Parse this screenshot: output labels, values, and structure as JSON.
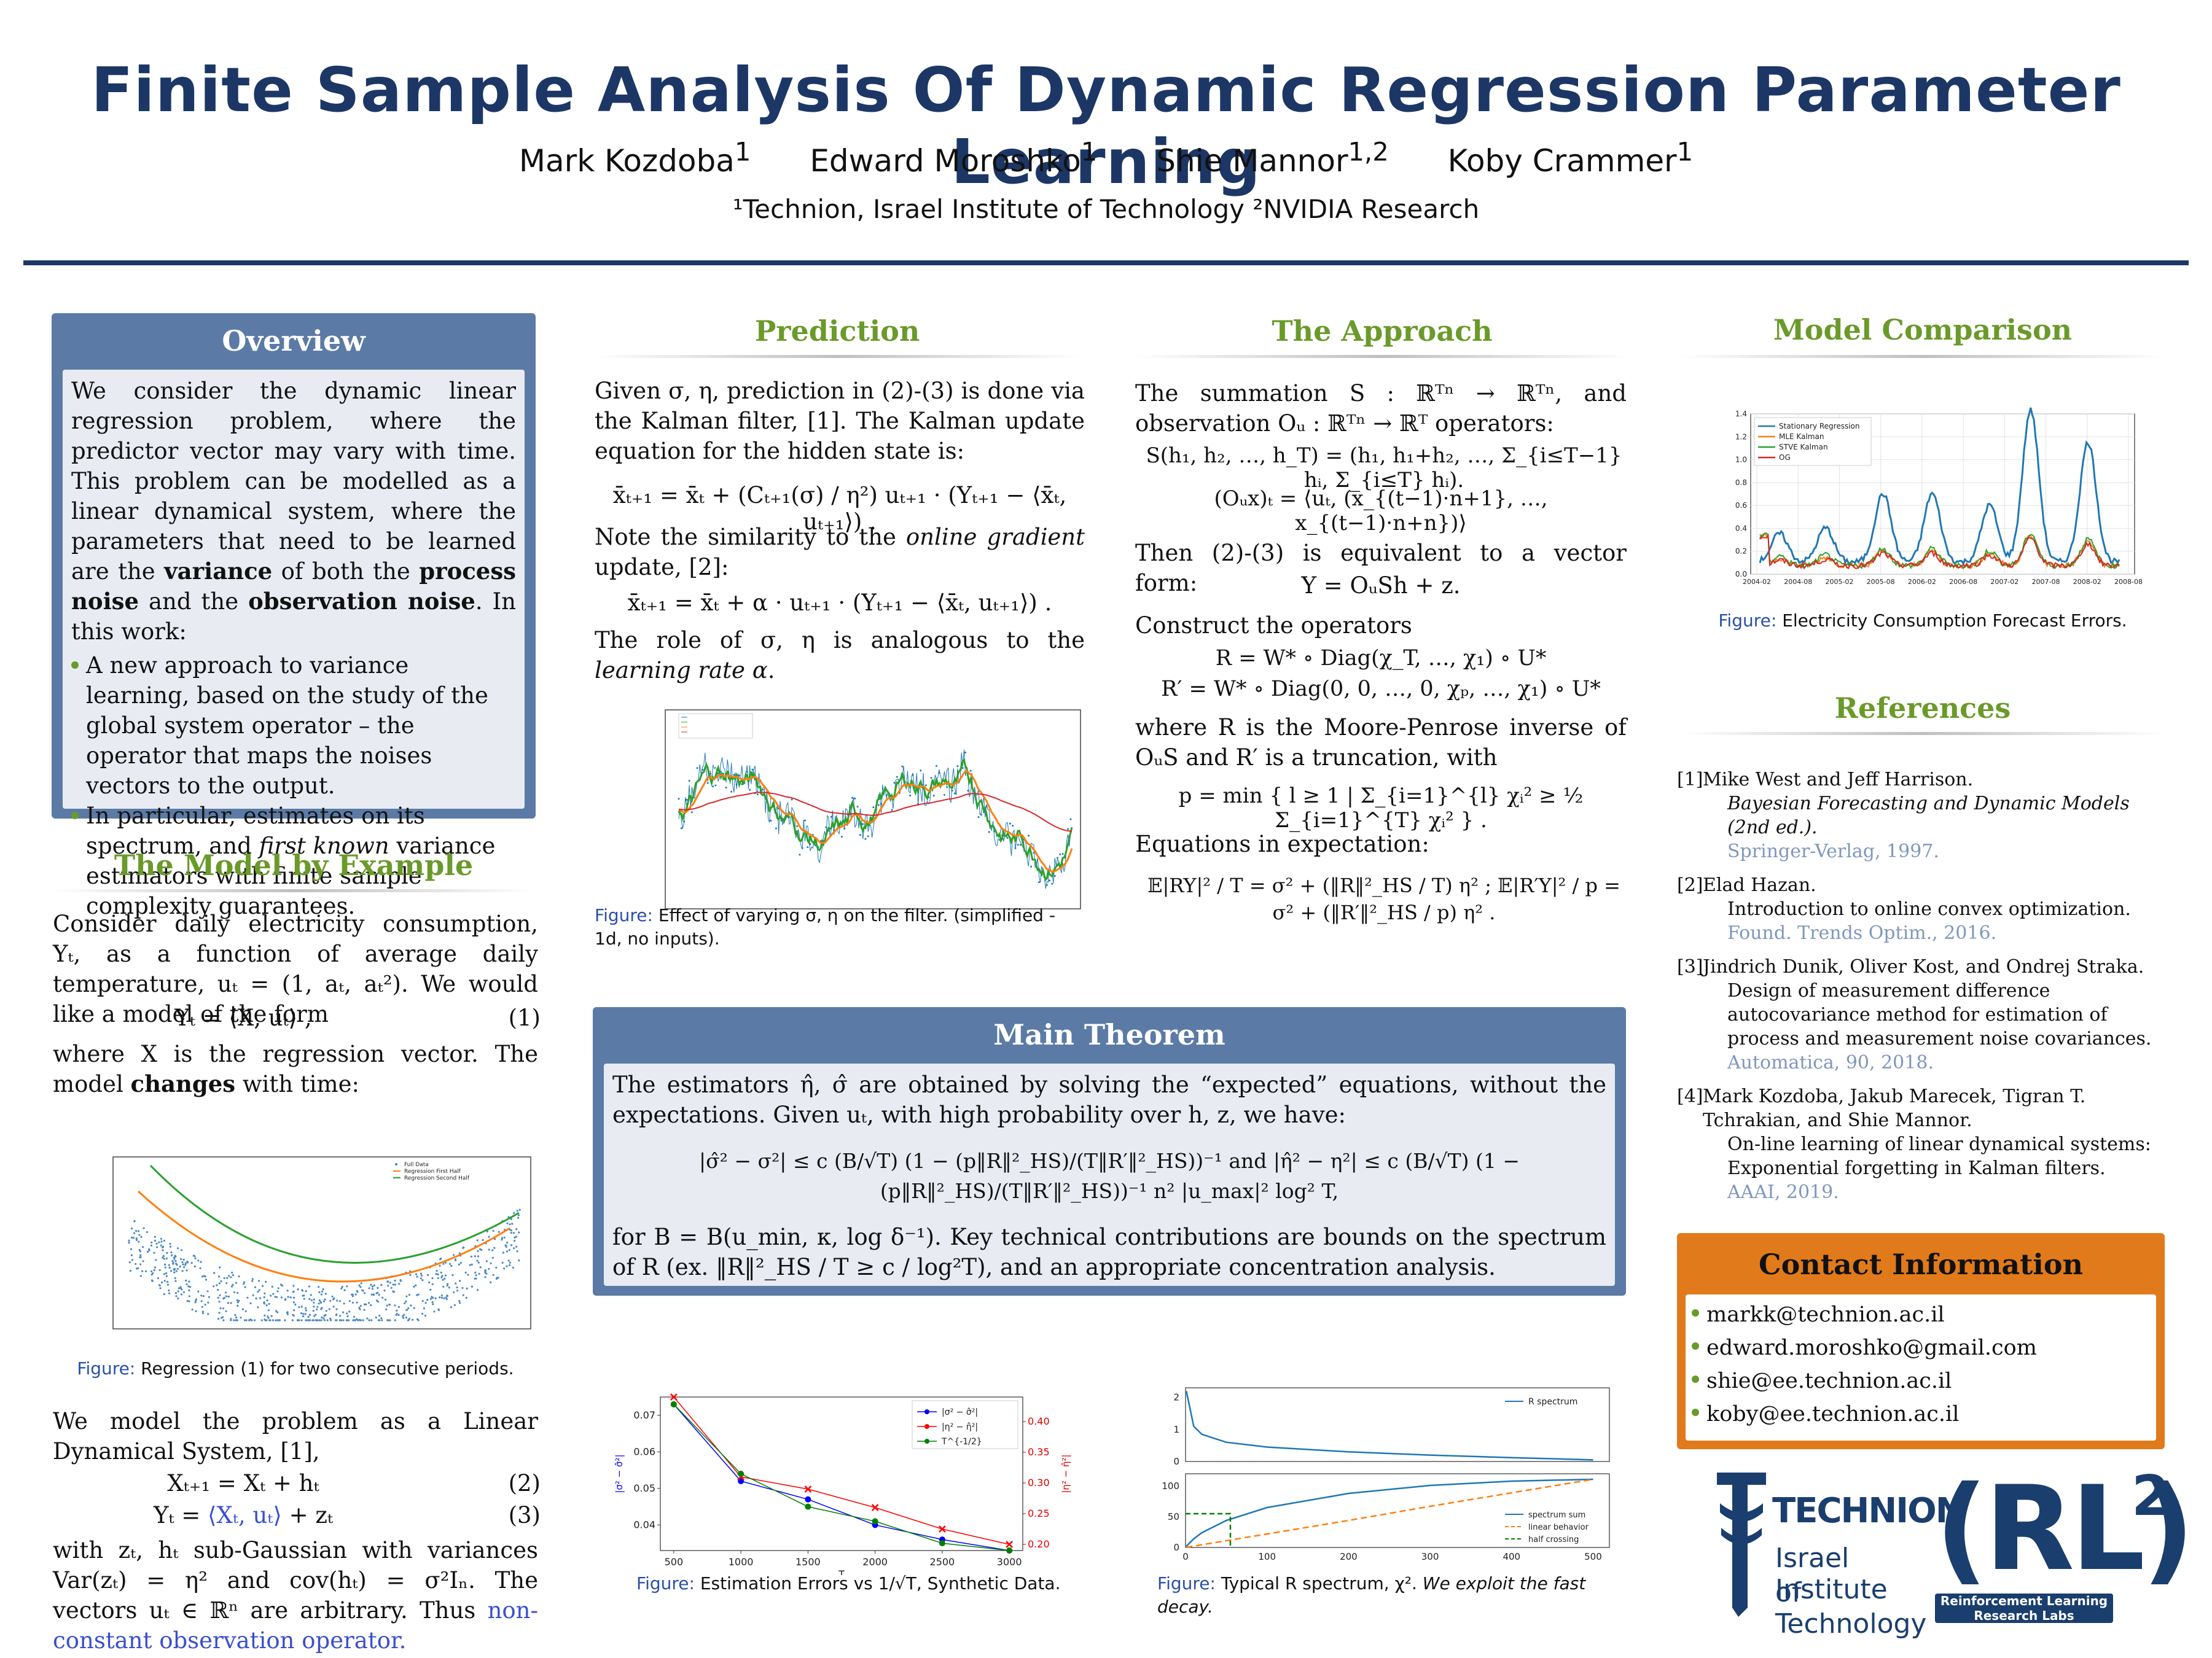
{
  "header": {
    "title": "Finite Sample Analysis Of Dynamic Regression Parameter Learning",
    "authors": [
      {
        "name": "Mark Kozdoba",
        "sup": "1"
      },
      {
        "name": "Edward Moroshko",
        "sup": "1"
      },
      {
        "name": "Shie Mannor",
        "sup": "1,2"
      },
      {
        "name": "Koby Crammer",
        "sup": "1"
      }
    ],
    "affiliations": "¹Technion, Israel Institute of Technology ²NVIDIA Research"
  },
  "overview": {
    "heading": "Overview",
    "p1a": "We consider the dynamic linear regression problem, where the predictor vector may vary with time. This problem can be modelled as a linear dynamical system, where the parameters that need to be learned are the ",
    "b1": "variance",
    "p1b": " of both the ",
    "b2": "process noise",
    "p1c": " and the ",
    "b3": "observation noise",
    "p1d": ". In this work:",
    "bullet1": "A new approach to variance learning, based on the study of the global system operator – the operator that maps the noises vectors to the output.",
    "bullet2a": "In particular, estimates on its spectrum, and ",
    "bullet2i": "first known",
    "bullet2b": " variance estimators with finite sample complexity guarantees."
  },
  "model": {
    "heading": "The Model by Example",
    "p1": "Consider daily electricity consumption, Yₜ, as a function of average daily temperature, uₜ = (1, aₜ, aₜ²). We would like a model of the form",
    "eq1": "Yₜ = ⟨X, uₜ⟩ ,",
    "eq1n": "(1)",
    "p2a": "where X is the regression vector. The model ",
    "p2b": "changes",
    "p2c": " with time:",
    "fig_label": "Figure:",
    "fig_caption": "Regression (1) for two consecutive periods.",
    "legend": [
      "Full Data",
      "Regression First Half",
      "Regression Second Half"
    ],
    "p3": "We model the problem as a Linear Dynamical System, [1],",
    "eq2": "Xₜ₊₁ = Xₜ + hₜ",
    "eq2n": "(2)",
    "eq3a": "Yₜ = ",
    "eq3b": "⟨Xₜ, uₜ⟩",
    "eq3c": " + zₜ",
    "eq3n": "(3)",
    "p4a": "with zₜ, hₜ sub-Gaussian with variances Var(zₜ) = η² and cov(hₜ) = σ²Iₙ. The vectors uₜ ∈ ℝⁿ are arbitrary. Thus ",
    "p4link": "non-constant observation operator."
  },
  "prediction": {
    "heading": "Prediction",
    "p1": "Given σ, η, prediction in (2)-(3) is done via the Kalman filter, [1]. The Kalman update equation for the hidden state is:",
    "eq1": "x̄ₜ₊₁ = x̄ₜ + (Cₜ₊₁(σ) / η²) uₜ₊₁ · (Yₜ₊₁ − ⟨x̄ₜ, uₜ₊₁⟩) .",
    "p2a": "Note the similarity to the ",
    "p2i": "online gradient",
    "p2b": " update, [2]:",
    "eq2": "x̄ₜ₊₁ = x̄ₜ + α · uₜ₊₁ · (Yₜ₊₁ − ⟨x̄ₜ, uₜ₊₁⟩) .",
    "p3a": "The role of σ, η is analogous to the ",
    "p3i": "learning rate α",
    "p3b": ".",
    "fig_label": "Figure:",
    "fig_caption": "Effect of varying σ, η on the filter. (simplified - 1d, no inputs)."
  },
  "approach": {
    "heading": "The Approach",
    "p1": "The summation S : ℝᵀⁿ → ℝᵀⁿ, and observation Oᵤ : ℝᵀⁿ → ℝᵀ operators:",
    "eq1": "S(h₁, h₂, …, h_T) = (h₁, h₁+h₂, …, Σ_{i≤T−1} hᵢ, Σ_{i≤T} hᵢ).",
    "eq2": "(Oᵤx)ₜ = ⟨uₜ, (x_{(t−1)·n+1}, …, x_{(t−1)·n+n})⟩",
    "p2": "Then (2)-(3) is equivalent to a vector form:",
    "eq3": "Y = OᵤSh + z.",
    "p3": "Construct the operators",
    "eq4": "R = W* ∘ Diag(χ_T, …, χ₁) ∘ U*",
    "eq5": "R′ = W* ∘ Diag(0, 0, …, 0, χₚ, …, χ₁) ∘ U*",
    "p4": "where R is the Moore-Penrose inverse of OᵤS and R′ is a truncation, with",
    "eq6": "p = min { l ≥ 1 | Σ_{i=1}^{l} χᵢ² ≥ ½ Σ_{i=1}^{T} χᵢ² } .",
    "p5": "Equations in expectation:",
    "eq7": "𝔼|RY|² / T = σ² + (‖R‖²_HS / T) η² ;   𝔼|R′Y|² / p = σ² + (‖R′‖²_HS / p) η² ."
  },
  "theorem": {
    "heading": "Main Theorem",
    "p1": "The estimators η̂, σ̂ are obtained by solving the “expected” equations, without the expectations. Given uₜ, with high probability over h, z, we have:",
    "eq": "|σ̂² − σ²| ≤ c (B/√T) (1 − (p‖R‖²_HS)/(T‖R′‖²_HS))⁻¹   and   |η̂² − η²| ≤ c (B/√T) (1 − (p‖R‖²_HS)/(T‖R′‖²_HS))⁻¹ n² |u_max|² log² T,",
    "p2": "for B = B(u_min, κ, log δ⁻¹). Key technical contributions are bounds on the spectrum of R (ex. ‖R‖²_HS / T ≥ c / log²T), and an appropriate concentration analysis."
  },
  "comparison": {
    "heading": "Model Comparison",
    "fig_label": "Figure:",
    "fig_caption": "Electricity Consumption Forecast Errors.",
    "legend": [
      "Stationary Regression",
      "MLE Kalman",
      "STVE Kalman",
      "OG"
    ],
    "colors": [
      "#1f77b4",
      "#ff7f0e",
      "#2ca02c",
      "#d62728"
    ],
    "yticks": [
      "0.0",
      "0.2",
      "0.4",
      "0.6",
      "0.8",
      "1.0",
      "1.2",
      "1.4"
    ],
    "xticks": [
      "2004-02",
      "2004-08",
      "2005-02",
      "2005-08",
      "2006-02",
      "2006-08",
      "2007-02",
      "2007-08",
      "2008-02",
      "2008-08"
    ]
  },
  "references": {
    "heading": "References",
    "items": [
      {
        "n": "[1]",
        "authors": "Mike West and Jeff Harrison.",
        "title": "Bayesian Forecasting and Dynamic Models (2nd ed.).",
        "title_italic": true,
        "src": "Springer-Verlag, 1997."
      },
      {
        "n": "[2]",
        "authors": "Elad Hazan.",
        "title": "Introduction to online convex optimization.",
        "title_italic": false,
        "src": "Found. Trends Optim., 2016."
      },
      {
        "n": "[3]",
        "authors": "Jindrich Dunik, Oliver Kost, and Ondrej Straka.",
        "title": "Design of measurement difference autocovariance method for estimation of process and measurement noise covariances.",
        "title_italic": false,
        "src": "Automatica, 90, 2018."
      },
      {
        "n": "[4]",
        "authors": "Mark Kozdoba, Jakub Marecek, Tigran T. Tchrakian, and Shie Mannor.",
        "title": "On-line learning of linear dynamical systems: Exponential forgetting in Kalman filters.",
        "title_italic": false,
        "src": "AAAI, 2019."
      }
    ]
  },
  "contact": {
    "heading": "Contact Information",
    "emails": [
      "markk@technion.ac.il",
      "edward.moroshko@gmail.com",
      "shie@ee.technion.ac.il",
      "koby@ee.technion.ac.il"
    ]
  },
  "logos": {
    "technion_line1": "TECHNION",
    "technion_line2": "Israel Institute",
    "technion_line3": "of Technology",
    "rl_text": "(RL)",
    "rl_sup": "2",
    "rl_caption1": "Reinforcement Learning",
    "rl_caption2": "Research Labs"
  },
  "error_plot": {
    "fig_label": "Figure:",
    "fig_caption": "Estimation Errors vs 1/√T, Synthetic Data.",
    "xlabel": "T",
    "xticks": [
      "500",
      "1000",
      "1500",
      "2000",
      "2500",
      "3000"
    ],
    "yticks_left": [
      "0.04",
      "0.05",
      "0.06",
      "0.07"
    ],
    "yticks_right": [
      "0.20",
      "0.25",
      "0.30",
      "0.35",
      "0.40"
    ],
    "ylabel_left": "|σ² − σ̂²|",
    "ylabel_right": "|η² − η̂²|",
    "legend": [
      "|σ² − σ̂²|",
      "|η² − η̂²|",
      "T^{-1/2}"
    ],
    "colors": [
      "#0000ff",
      "#ff0000",
      "#008000"
    ],
    "chart_data": {
      "type": "line",
      "x": [
        500,
        1000,
        1500,
        2000,
        2500,
        3000
      ],
      "series": [
        {
          "name": "|σ² − σ̂²|",
          "axis": "left",
          "values": [
            0.073,
            0.052,
            0.047,
            0.04,
            0.036,
            0.033
          ]
        },
        {
          "name": "|η² − η̂²|",
          "axis": "right",
          "values": [
            0.44,
            0.31,
            0.29,
            0.26,
            0.225,
            0.2
          ]
        },
        {
          "name": "T^{-1/2}",
          "axis": "left",
          "values": [
            0.073,
            0.054,
            0.045,
            0.041,
            0.035,
            0.033
          ]
        }
      ],
      "xlabel": "T",
      "ylim_left": [
        0.033,
        0.075
      ],
      "ylim_right": [
        0.19,
        0.44
      ]
    }
  },
  "spectrum_plot": {
    "fig_label": "Figure:",
    "fig_caption_a": "Typical R spectrum, χ². ",
    "fig_caption_b": "We exploit the fast decay.",
    "legend_top": "R spectrum",
    "legend_bottom": [
      "spectrum sum",
      "linear behavior",
      "half crossing"
    ],
    "yticks_top": [
      "0",
      "1",
      "2"
    ],
    "yticks_bottom": [
      "0",
      "50",
      "100"
    ],
    "xticks": [
      "0",
      "100",
      "200",
      "300",
      "400",
      "500"
    ],
    "chart_data": {
      "type": "line",
      "x": [
        1,
        10,
        20,
        50,
        100,
        200,
        300,
        400,
        500
      ],
      "series": [
        {
          "name": "R spectrum",
          "values": [
            2.2,
            1.1,
            0.85,
            0.6,
            0.45,
            0.3,
            0.2,
            0.12,
            0.05
          ]
        },
        {
          "name": "spectrum sum",
          "values": [
            2,
            14,
            24,
            44,
            65,
            88,
            101,
            108,
            111
          ]
        },
        {
          "name": "linear behavior",
          "values": [
            0.2,
            2.2,
            4.4,
            11,
            22,
            44,
            67,
            89,
            111
          ]
        }
      ],
      "half_crossing": {
        "x": 55,
        "y": 55
      }
    }
  }
}
